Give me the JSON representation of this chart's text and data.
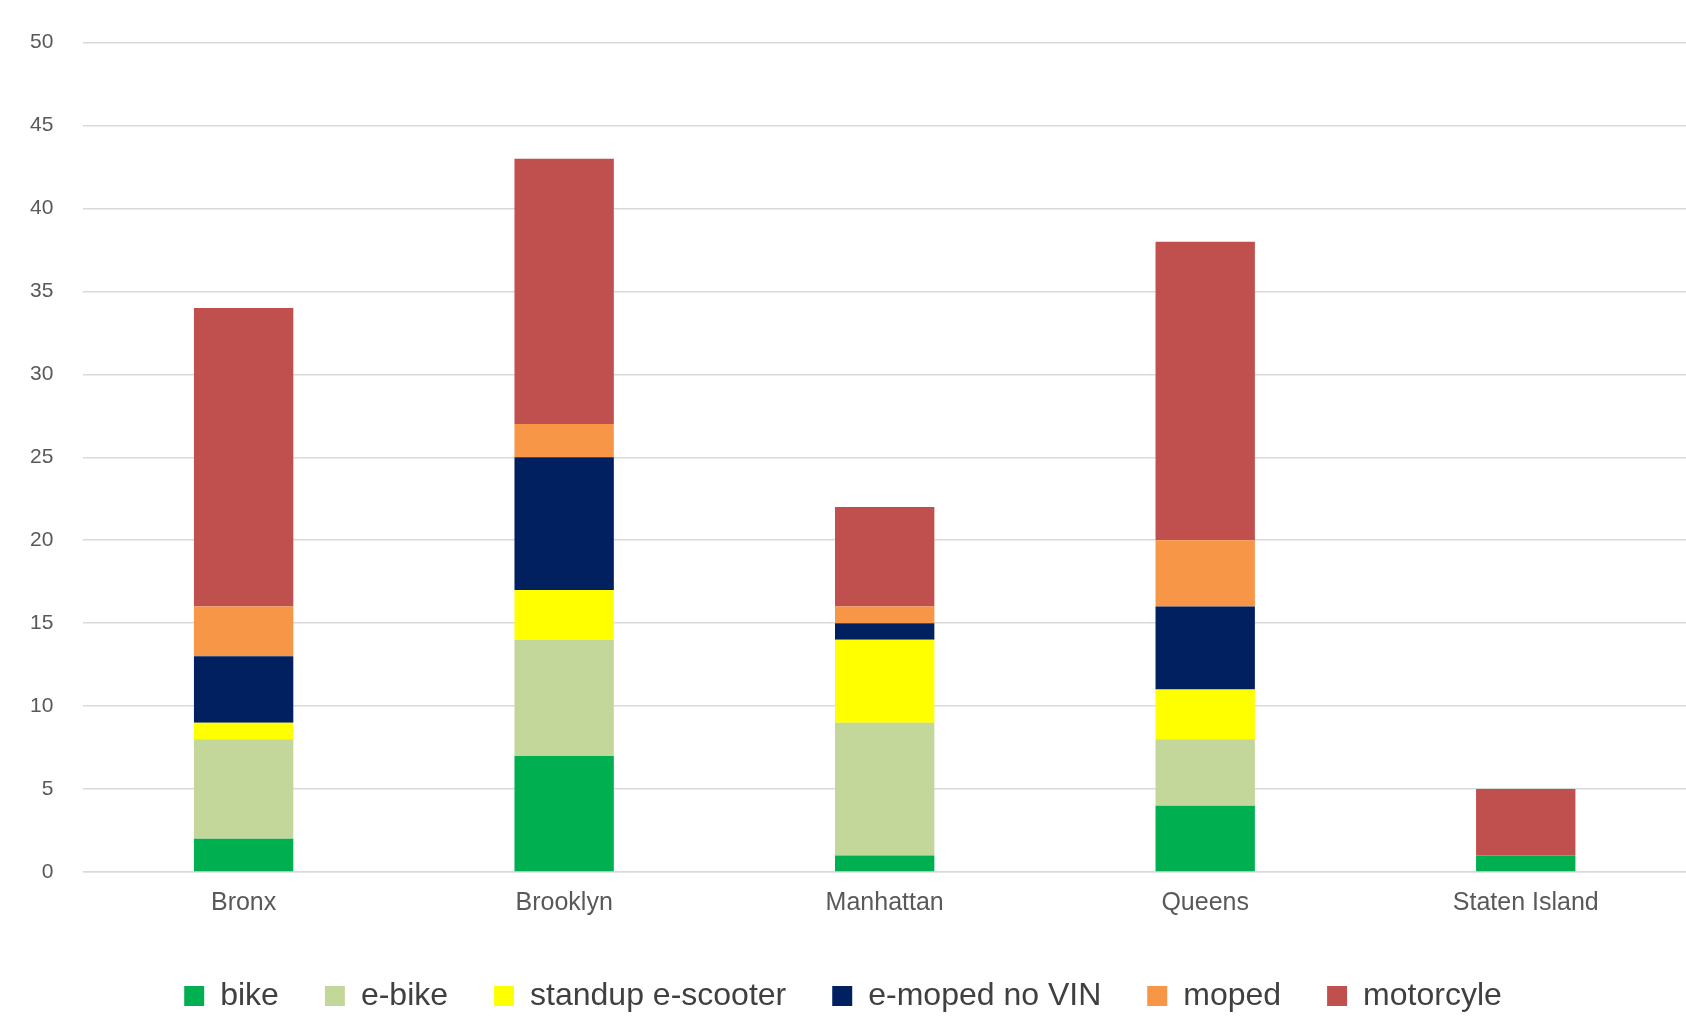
{
  "chart_data": {
    "type": "bar",
    "stacked": true,
    "categories": [
      "Bronx",
      "Brooklyn",
      "Manhattan",
      "Queens",
      "Staten Island"
    ],
    "series": [
      {
        "name": "bike",
        "color": "#00b050",
        "values": [
          2,
          7,
          1,
          4,
          1
        ]
      },
      {
        "name": "e-bike",
        "color": "#c4d79b",
        "values": [
          6,
          7,
          8,
          4,
          0
        ]
      },
      {
        "name": "standup e-scooter",
        "color": "#ffff00",
        "values": [
          1,
          3,
          5,
          3,
          0
        ]
      },
      {
        "name": "e-moped no VIN",
        "color": "#002060",
        "values": [
          4,
          8,
          1,
          5,
          0
        ]
      },
      {
        "name": "moped",
        "color": "#f79646",
        "values": [
          3,
          2,
          1,
          4,
          0
        ]
      },
      {
        "name": "motorcyle",
        "color": "#c0504d",
        "values": [
          18,
          16,
          6,
          18,
          4
        ]
      }
    ],
    "ylim": [
      0,
      50
    ],
    "yticks": [
      0,
      5,
      10,
      15,
      20,
      25,
      30,
      35,
      40,
      45,
      50
    ],
    "grid": "y",
    "legend": "bottom"
  }
}
